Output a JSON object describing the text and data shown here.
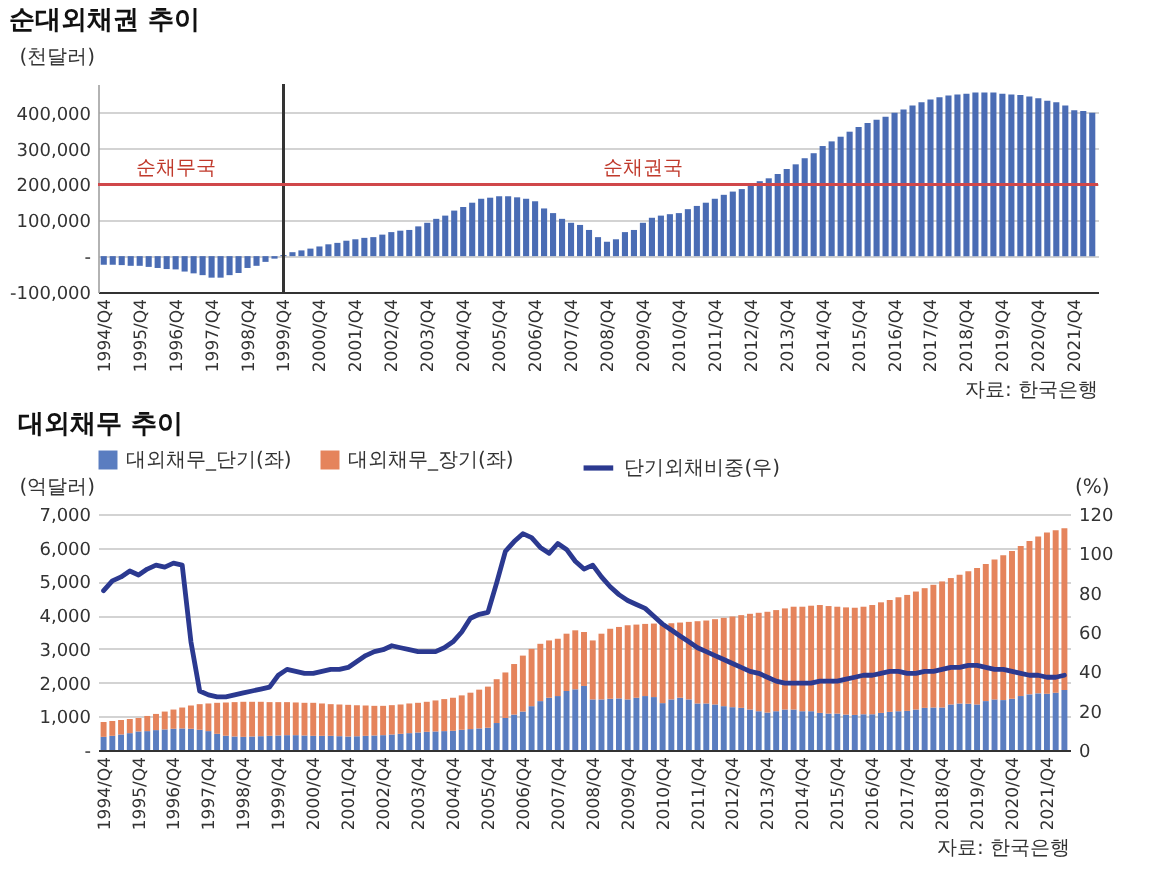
{
  "chart_data": [
    {
      "type": "bar",
      "title": "순대외채권 추이",
      "ylabel": "(천달러)",
      "categories": [
        "1994/Q4",
        null,
        null,
        null,
        "1995/Q4",
        null,
        null,
        null,
        "1996/Q4",
        null,
        null,
        null,
        "1997/Q4",
        null,
        null,
        null,
        "1998/Q4",
        null,
        null,
        null,
        "1999/Q4",
        null,
        null,
        null,
        "2000/Q4",
        null,
        null,
        null,
        "2001/Q4",
        null,
        null,
        null,
        "2002/Q4",
        null,
        null,
        null,
        "2003/Q4",
        null,
        null,
        null,
        "2004/Q4",
        null,
        null,
        null,
        "2005/Q4",
        null,
        null,
        null,
        "2006/Q4",
        null,
        null,
        null,
        "2007/Q4",
        null,
        null,
        null,
        "2008/Q4",
        null,
        null,
        null,
        "2009/Q4",
        null,
        null,
        null,
        "2010/Q4",
        null,
        null,
        null,
        "2011/Q4",
        null,
        null,
        null,
        "2012/Q4",
        null,
        null,
        null,
        "2013/Q4",
        null,
        null,
        null,
        "2014/Q4",
        null,
        null,
        null,
        "2015/Q4",
        null,
        null,
        null,
        "2016/Q4",
        null,
        null,
        null,
        "2017/Q4",
        null,
        null,
        null,
        "2018/Q4",
        null,
        null,
        null,
        "2019/Q4",
        null,
        null,
        null,
        "2020/Q4",
        null,
        null,
        null,
        "2021/Q4",
        null,
        null
      ],
      "values": [
        -24000,
        -24000,
        -25000,
        -27000,
        -27000,
        -30000,
        -33000,
        -36000,
        -37000,
        -43000,
        -48000,
        -53000,
        -60000,
        -60000,
        -53000,
        -47000,
        -33000,
        -27000,
        -16000,
        -7000,
        3000,
        11000,
        16000,
        21000,
        27000,
        33000,
        37000,
        43000,
        47000,
        51000,
        53000,
        60000,
        67000,
        71000,
        73000,
        83000,
        93000,
        104000,
        113000,
        127000,
        137000,
        149000,
        160000,
        163000,
        167000,
        167000,
        164000,
        160000,
        153000,
        133000,
        120000,
        104000,
        93000,
        87000,
        73000,
        53000,
        40000,
        47000,
        67000,
        73000,
        93000,
        107000,
        113000,
        117000,
        120000,
        131000,
        140000,
        149000,
        160000,
        171000,
        180000,
        187000,
        200000,
        209000,
        217000,
        229000,
        243000,
        256000,
        273000,
        287000,
        307000,
        320000,
        333000,
        347000,
        360000,
        371000,
        380000,
        389000,
        400000,
        409000,
        420000,
        429000,
        437000,
        443000,
        448000,
        451000,
        453000,
        456000,
        456000,
        456000,
        453000,
        451000,
        449000,
        445000,
        440000,
        433000,
        429000,
        420000,
        407000,
        405000,
        400000
      ],
      "color": "#4a6cb4",
      "ylim": [
        -100000,
        480000
      ],
      "yticks": [
        {
          "value": -100000,
          "label": "-100,000"
        },
        {
          "value": 0,
          "label": "-"
        },
        {
          "value": 100000,
          "label": "100,000"
        },
        {
          "value": 200000,
          "label": "200,000"
        },
        {
          "value": 300000,
          "label": "300,000"
        },
        {
          "value": 400000,
          "label": "400,000"
        }
      ],
      "grid": "y",
      "ref_lines": [
        {
          "axis": "x",
          "value": "1999/Q4",
          "color": "#333333"
        },
        {
          "axis": "y",
          "value": 200000,
          "color": "#d0474a"
        }
      ],
      "annotations": [
        {
          "text": "순채무국",
          "x": "1996/Q4",
          "y": 200000
        },
        {
          "text": "순채권국",
          "x": "2009/Q4",
          "y": 200000
        },
        "자료: 한국은행"
      ]
    },
    {
      "type": "bar",
      "title": "대외채무 추이",
      "ylabel": "(억달러)",
      "y2label": "(%)",
      "stacked": true,
      "categories": [
        "1994/Q4",
        null,
        null,
        null,
        "1995/Q4",
        null,
        null,
        null,
        "1996/Q4",
        null,
        null,
        null,
        "1997/Q4",
        null,
        null,
        null,
        "1998/Q4",
        null,
        null,
        null,
        "1999/Q4",
        null,
        null,
        null,
        "2000/Q4",
        null,
        null,
        null,
        "2001/Q4",
        null,
        null,
        null,
        "2002/Q4",
        null,
        null,
        null,
        "2003/Q4",
        null,
        null,
        null,
        "2004/Q4",
        null,
        null,
        null,
        "2005/Q4",
        null,
        null,
        null,
        "2006/Q4",
        null,
        null,
        null,
        "2007/Q4",
        null,
        null,
        null,
        "2008/Q4",
        null,
        null,
        null,
        "2009/Q4",
        null,
        null,
        null,
        "2010/Q4",
        null,
        null,
        null,
        "2011/Q4",
        null,
        null,
        null,
        "2012/Q4",
        null,
        null,
        null,
        "2013/Q4",
        null,
        null,
        null,
        "2014/Q4",
        null,
        null,
        null,
        "2015/Q4",
        null,
        null,
        null,
        "2016/Q4",
        null,
        null,
        null,
        "2017/Q4",
        null,
        null,
        null,
        "2018/Q4",
        null,
        null,
        null,
        "2019/Q4",
        null,
        null,
        null,
        "2020/Q4",
        null,
        null,
        null,
        "2021/Q4",
        null,
        null
      ],
      "series": [
        {
          "name": "대외채무_단기(좌)",
          "color": "#5a7dc0",
          "values": [
            390,
            420,
            460,
            500,
            550,
            560,
            590,
            610,
            630,
            640,
            630,
            600,
            560,
            480,
            420,
            400,
            390,
            400,
            410,
            420,
            430,
            440,
            440,
            430,
            420,
            420,
            420,
            410,
            400,
            410,
            420,
            430,
            440,
            460,
            480,
            500,
            520,
            540,
            550,
            560,
            570,
            600,
            620,
            640,
            660,
            800,
            950,
            1050,
            1140,
            1300,
            1450,
            1550,
            1600,
            1750,
            1800,
            1900,
            1500,
            1500,
            1520,
            1530,
            1500,
            1550,
            1600,
            1570,
            1390,
            1500,
            1550,
            1500,
            1380,
            1380,
            1350,
            1300,
            1270,
            1250,
            1200,
            1150,
            1110,
            1150,
            1200,
            1200,
            1150,
            1150,
            1100,
            1080,
            1080,
            1050,
            1040,
            1060,
            1060,
            1100,
            1130,
            1150,
            1160,
            1200,
            1250,
            1260,
            1260,
            1350,
            1380,
            1370,
            1350,
            1450,
            1500,
            1480,
            1520,
            1600,
            1650,
            1680,
            1670,
            1700,
            1780
          ]
        },
        {
          "name": "대외채무_장기(좌)",
          "color": "#e5845c",
          "values": [
            440,
            440,
            430,
            420,
            400,
            450,
            480,
            530,
            570,
            620,
            690,
            760,
            820,
            920,
            990,
            1020,
            1040,
            1030,
            1020,
            1000,
            990,
            980,
            970,
            970,
            980,
            960,
            940,
            940,
            940,
            920,
            900,
            880,
            870,
            870,
            870,
            880,
            880,
            890,
            920,
            950,
            980,
            1020,
            1080,
            1150,
            1220,
            1300,
            1350,
            1500,
            1660,
            1700,
            1700,
            1700,
            1700,
            1700,
            1750,
            1600,
            1750,
            1950,
            2080,
            2120,
            2200,
            2170,
            2140,
            2180,
            2370,
            2260,
            2230,
            2300,
            2440,
            2460,
            2530,
            2620,
            2690,
            2750,
            2840,
            2920,
            2990,
            3000,
            3000,
            3050,
            3100,
            3130,
            3200,
            3190,
            3170,
            3180,
            3180,
            3190,
            3240,
            3280,
            3320,
            3380,
            3440,
            3500,
            3550,
            3640,
            3740,
            3750,
            3820,
            3930,
            4050,
            4070,
            4150,
            4300,
            4380,
            4450,
            4550,
            4650,
            4780,
            4820,
            4800
          ]
        },
        {
          "name": "단기외채비중(우)",
          "type": "line",
          "axis": "y2",
          "color": "#2b3990",
          "values": [
            81,
            86,
            88,
            91,
            89,
            92,
            94,
            93,
            95,
            94,
            55,
            30,
            28,
            27,
            27,
            28,
            29,
            30,
            31,
            32,
            38,
            41,
            40,
            39,
            39,
            40,
            41,
            41,
            42,
            45,
            48,
            50,
            51,
            53,
            52,
            51,
            50,
            50,
            50,
            52,
            55,
            60,
            67,
            69,
            70,
            85,
            101,
            106,
            110,
            108,
            103,
            100,
            105,
            102,
            96,
            92,
            94,
            88,
            83,
            79,
            76,
            74,
            72,
            68,
            64,
            61,
            58,
            55,
            52,
            50,
            48,
            46,
            44,
            42,
            40,
            39,
            37,
            35,
            34,
            34,
            34,
            34,
            35,
            35,
            35,
            36,
            37,
            38,
            38,
            39,
            40,
            40,
            39,
            39,
            40,
            40,
            41,
            42,
            42,
            43,
            43,
            42,
            41,
            41,
            40,
            39,
            38,
            38,
            37,
            37,
            38
          ]
        }
      ],
      "ylim": [
        0,
        7000
      ],
      "yticks": [
        {
          "value": 0,
          "label": "-"
        },
        {
          "value": 1000,
          "label": "1,000"
        },
        {
          "value": 2000,
          "label": "2,000"
        },
        {
          "value": 3000,
          "label": "3,000"
        },
        {
          "value": 4000,
          "label": "4,000"
        },
        {
          "value": 5000,
          "label": "5,000"
        },
        {
          "value": 6000,
          "label": "6,000"
        },
        {
          "value": 7000,
          "label": "7,000"
        }
      ],
      "y2lim": [
        0,
        120
      ],
      "y2ticks": [
        0,
        20,
        40,
        60,
        80,
        100,
        120
      ],
      "grid": "y",
      "legend": "top left",
      "annotations": [
        "자료: 한국은행"
      ]
    }
  ]
}
